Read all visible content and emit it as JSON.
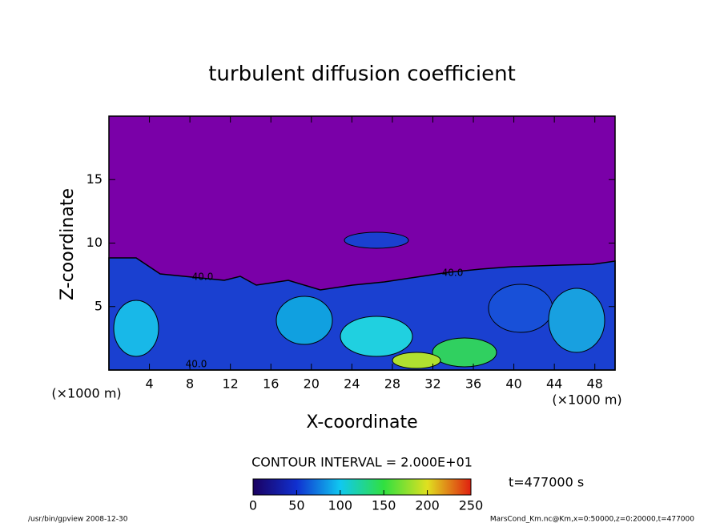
{
  "chart_data": {
    "type": "contour",
    "title": "turbulent diffusion coefficient",
    "xlabel": "X-coordinate",
    "ylabel": "Z-coordinate",
    "x_unit": "(×1000 m)",
    "y_unit": "(×1000 m)",
    "xlim": [
      0,
      50
    ],
    "ylim": [
      0,
      20
    ],
    "xticks": [
      4,
      8,
      12,
      16,
      20,
      24,
      28,
      32,
      36,
      40,
      44,
      48
    ],
    "yticks": [
      5,
      10,
      15
    ],
    "contour_labels": [
      "40.0",
      "40.0",
      "40.0"
    ],
    "contour_interval": "CONTOUR INTERVAL = 2.000E+01",
    "colorbar": {
      "clim": [
        0,
        250
      ],
      "ticks": [
        0,
        50,
        100,
        150,
        200,
        250
      ]
    },
    "time_label": "t=477000 s",
    "footer_left": "/usr/bin/gpview  2008-12-30",
    "footer_right": "MarsCond_Km.nc@Km,x=0:50000,z=0:20000,t=477000"
  }
}
